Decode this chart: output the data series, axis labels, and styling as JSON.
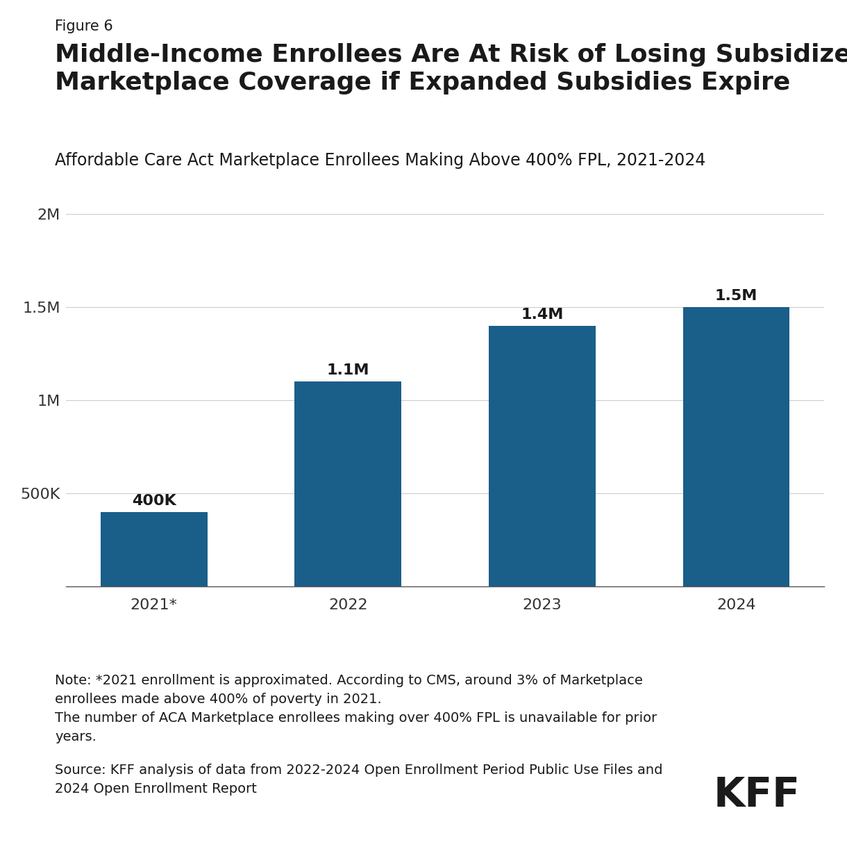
{
  "figure_label": "Figure 6",
  "title": "Middle-Income Enrollees Are At Risk of Losing Subsidized ACA\nMarketplace Coverage if Expanded Subsidies Expire",
  "subtitle": "Affordable Care Act Marketplace Enrollees Making Above 400% FPL, 2021-2024",
  "categories": [
    "2021*",
    "2022",
    "2023",
    "2024"
  ],
  "values": [
    400000,
    1100000,
    1400000,
    1500000
  ],
  "bar_labels": [
    "400K",
    "1.1M",
    "1.4M",
    "1.5M"
  ],
  "bar_color": "#1a5e8a",
  "ylim": [
    0,
    2000000
  ],
  "yticks": [
    0,
    500000,
    1000000,
    1500000,
    2000000
  ],
  "ytick_labels": [
    "",
    "500K",
    "1M",
    "1.5M",
    "2M"
  ],
  "background_color": "#ffffff",
  "note_text": "Note: *2021 enrollment is approximated. According to CMS, around 3% of Marketplace\nenrollees made above 400% of poverty in 2021.\nThe number of ACA Marketplace enrollees making over 400% FPL is unavailable for prior\nyears.",
  "source_text": "Source: KFF analysis of data from 2022-2024 Open Enrollment Period Public Use Files and\n2024 Open Enrollment Report",
  "kff_logo_text": "KFF",
  "title_fontsize": 26,
  "subtitle_fontsize": 17,
  "figure_label_fontsize": 15,
  "bar_label_fontsize": 16,
  "tick_fontsize": 16,
  "note_fontsize": 14,
  "source_fontsize": 14
}
